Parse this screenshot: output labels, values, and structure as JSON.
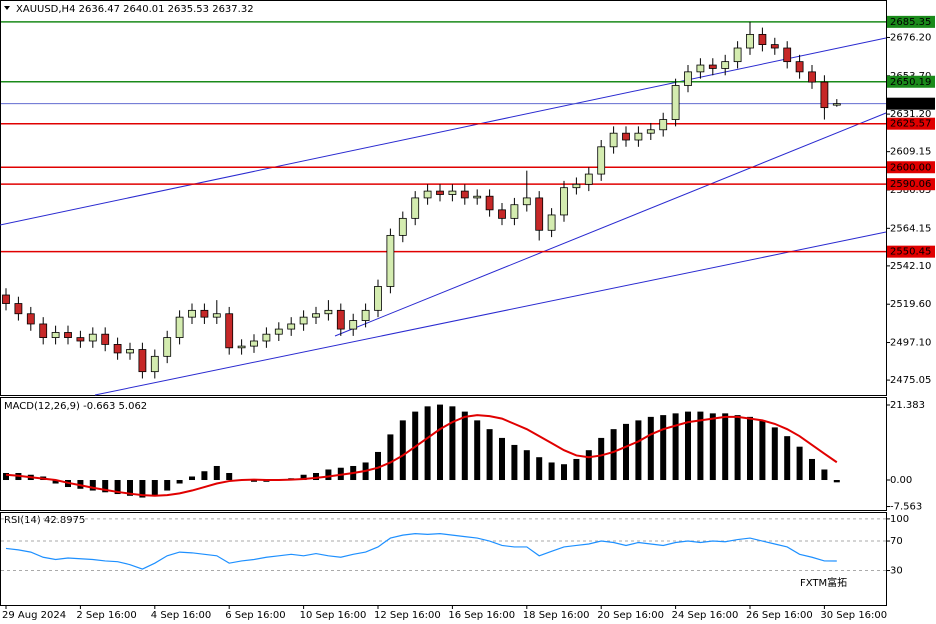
{
  "chart_data": [
    {
      "type": "candlestick",
      "title": "XAUUSD,H4  2636.47 2640.01 2635.53 2637.32",
      "up_color": "#d4ecb0",
      "down_color": "#c62828",
      "outline_color": "#000000",
      "categories": [
        "29 Aug 2024",
        null,
        null,
        null,
        null,
        null,
        "2 Sep 16:00",
        null,
        null,
        null,
        null,
        null,
        "4 Sep 16:00",
        null,
        null,
        null,
        null,
        null,
        "6 Sep 16:00",
        null,
        null,
        null,
        null,
        null,
        "10 Sep 16:00",
        null,
        null,
        null,
        null,
        null,
        "12 Sep 16:00",
        null,
        null,
        null,
        null,
        null,
        "16 Sep 16:00",
        null,
        null,
        null,
        null,
        null,
        "18 Sep 16:00",
        null,
        null,
        null,
        null,
        null,
        "20 Sep 16:00",
        null,
        null,
        null,
        null,
        null,
        "24 Sep 16:00",
        null,
        null,
        null,
        null,
        null,
        "26 Sep 16:00",
        null,
        null,
        null,
        null,
        null,
        "30 Sep 16:00",
        null
      ],
      "open": [
        2525,
        2520,
        2514,
        2508,
        2500,
        2503,
        2500,
        2498,
        2502,
        2496,
        2491,
        2493,
        2480,
        2489,
        2500,
        2512,
        2516,
        2512,
        2514,
        2494,
        2495,
        2498,
        2502,
        2505,
        2508,
        2512,
        2514,
        2516,
        2505,
        2510,
        2516,
        2530,
        2560,
        2570,
        2582,
        2586,
        2584,
        2586,
        2582,
        2583,
        2575,
        2570,
        2578,
        2582,
        2563,
        2572,
        2588,
        2590,
        2596,
        2612,
        2620,
        2616,
        2620,
        2622,
        2628,
        2648,
        2656,
        2660,
        2658,
        2662,
        2670,
        2678,
        2672,
        2670,
        2662,
        2656,
        2650,
        2636.47
      ],
      "high": [
        2529,
        2524,
        2518,
        2512,
        2507,
        2507,
        2504,
        2506,
        2506,
        2500,
        2497,
        2497,
        2493,
        2504,
        2516,
        2520,
        2520,
        2522,
        2518,
        2499,
        2502,
        2506,
        2509,
        2512,
        2516,
        2518,
        2522,
        2520,
        2514,
        2520,
        2534,
        2564,
        2574,
        2586,
        2590,
        2590,
        2590,
        2590,
        2587,
        2587,
        2579,
        2582,
        2598,
        2586,
        2576,
        2592,
        2594,
        2600,
        2616,
        2624,
        2624,
        2624,
        2626,
        2632,
        2652,
        2660,
        2664,
        2664,
        2666,
        2674,
        2685.35,
        2682,
        2676,
        2674,
        2666,
        2660,
        2654,
        2640.01
      ],
      "low": [
        2516,
        2510,
        2504,
        2496,
        2496,
        2496,
        2494,
        2494,
        2492,
        2487,
        2487,
        2476,
        2476,
        2485,
        2496,
        2508,
        2508,
        2508,
        2490,
        2490,
        2491,
        2494,
        2498,
        2501,
        2504,
        2508,
        2510,
        2501,
        2501,
        2506,
        2512,
        2526,
        2556,
        2566,
        2578,
        2580,
        2580,
        2578,
        2578,
        2571,
        2566,
        2566,
        2574,
        2557,
        2559,
        2568,
        2584,
        2586,
        2592,
        2608,
        2612,
        2612,
        2616,
        2618,
        2624,
        2644,
        2652,
        2654,
        2654,
        2658,
        2666,
        2668,
        2666,
        2658,
        2652,
        2646,
        2628,
        2635.53
      ],
      "close": [
        2520,
        2514,
        2508,
        2500,
        2503,
        2500,
        2498,
        2502,
        2496,
        2491,
        2493,
        2480,
        2489,
        2500,
        2512,
        2516,
        2512,
        2514,
        2494,
        2495,
        2498,
        2502,
        2505,
        2508,
        2512,
        2514,
        2516,
        2505,
        2510,
        2516,
        2530,
        2560,
        2570,
        2582,
        2586,
        2584,
        2586,
        2582,
        2583,
        2575,
        2570,
        2578,
        2582,
        2563,
        2572,
        2588,
        2590,
        2596,
        2612,
        2620,
        2616,
        2620,
        2622,
        2628,
        2648,
        2656,
        2660,
        2658,
        2662,
        2670,
        2678,
        2672,
        2670,
        2662,
        2656,
        2650,
        2635,
        2637.32
      ],
      "ylim": [
        2466.3,
        2697.6
      ],
      "yticks": [
        {
          "value": 2676.2,
          "label": "2676.20"
        },
        {
          "value": 2653.7,
          "label": "2653.70"
        },
        {
          "value": 2631.2,
          "label": "2631.20"
        },
        {
          "value": 2609.15,
          "label": "2609.15"
        },
        {
          "value": 2586.65,
          "label": "2586.65"
        },
        {
          "value": 2564.15,
          "label": "2564.15"
        },
        {
          "value": 2542.1,
          "label": "2542.10"
        },
        {
          "value": 2519.6,
          "label": "2519.60"
        },
        {
          "value": 2497.1,
          "label": "2497.10"
        },
        {
          "value": 2475.05,
          "label": "2475.05"
        }
      ],
      "levels": {
        "values": [
          2685.35,
          2650.19,
          2625.57,
          2600,
          2590.06,
          2550.45
        ],
        "value_labels": [
          "2685.35",
          "2650.19",
          "2625.57",
          "2600.00",
          "2590.06",
          "2550.45"
        ],
        "colors": [
          "#1a8a1a",
          "#1a8a1a",
          "#e00000",
          "#e00000",
          "#e00000",
          "#e00000"
        ]
      },
      "last_price": {
        "value": 2637.32,
        "color": "#4a55c8"
      },
      "watermark": "FXTM富拓"
    },
    {
      "type": "macd",
      "title": "MACD(12,26,9) -0.663 5.062",
      "series": [
        {
          "type": "bar",
          "color": "#000000",
          "values": [
            2,
            2,
            1.5,
            1,
            -1,
            -2,
            -2.5,
            -3,
            -3.5,
            -4,
            -4.5,
            -5,
            -4.5,
            -3,
            -1,
            1,
            2.5,
            4,
            2,
            0,
            -0.5,
            -0.5,
            0,
            0.5,
            1.5,
            2,
            3,
            3.5,
            4,
            5,
            8,
            13,
            17,
            19.5,
            21,
            21.5,
            21,
            19.5,
            17,
            14.5,
            12,
            10,
            8.5,
            6.5,
            5,
            4.5,
            6,
            8.5,
            12,
            14.5,
            16,
            17,
            18,
            18.5,
            19,
            19.5,
            19.5,
            19,
            19,
            18.5,
            18,
            17,
            15,
            12.5,
            9.5,
            6,
            3,
            -0.663
          ]
        },
        {
          "type": "line",
          "color": "#e00000",
          "values": [
            1.5,
            1.2,
            0.8,
            0.4,
            0,
            -0.8,
            -1.5,
            -2.2,
            -2.8,
            -3.4,
            -3.9,
            -4.3,
            -4.5,
            -4.3,
            -3.8,
            -3,
            -2,
            -1,
            -0.3,
            0,
            0.1,
            0,
            0,
            0.1,
            0.3,
            0.6,
            1,
            1.5,
            2,
            2.6,
            3.5,
            5,
            7,
            9.5,
            12,
            14.5,
            16.5,
            18,
            18.5,
            18.2,
            17.5,
            16,
            14.5,
            12.5,
            10.5,
            8.5,
            7,
            6.5,
            7,
            8,
            9.5,
            11,
            13,
            14.5,
            15.5,
            16.5,
            17,
            17.5,
            18,
            18,
            17.5,
            17,
            16,
            14.5,
            12.5,
            10,
            7.5,
            5.062
          ]
        }
      ],
      "ylim": [
        -8.55,
        23.38
      ],
      "yticks": [
        21.383,
        {
          "value": 0,
          "label": "0.00"
        },
        -7.563
      ]
    },
    {
      "type": "rsi",
      "title": "RSI(14) 42.8975",
      "series": [
        {
          "type": "line",
          "color": "#1e90ff",
          "values": [
            60,
            58,
            55,
            48,
            45,
            47,
            46,
            45,
            43,
            42,
            38,
            32,
            40,
            50,
            55,
            54,
            52,
            50,
            40,
            43,
            45,
            48,
            50,
            52,
            50,
            53,
            50,
            48,
            52,
            55,
            62,
            74,
            78,
            80,
            79,
            80,
            78,
            76,
            74,
            70,
            64,
            62,
            62,
            50,
            56,
            62,
            64,
            66,
            70,
            68,
            64,
            68,
            66,
            64,
            68,
            70,
            68,
            70,
            69,
            72,
            74,
            70,
            66,
            62,
            52,
            48,
            43,
            42.8975
          ]
        }
      ],
      "ylim": [
        -16.7,
        108
      ],
      "yticks": [
        100,
        70,
        30
      ],
      "grid": true
    }
  ]
}
